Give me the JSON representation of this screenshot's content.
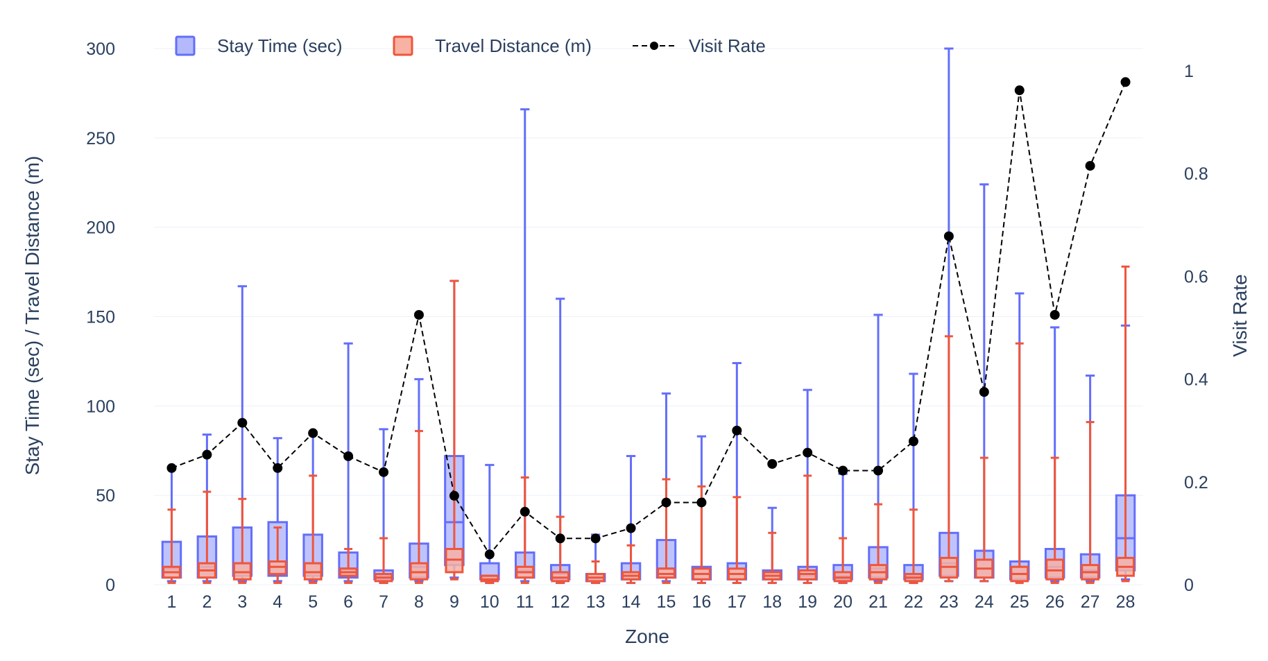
{
  "chart_data": {
    "type": "box",
    "xlabel": "Zone",
    "ylabel": "Stay Time (sec) / Travel Distance (m)",
    "y2label": "Visit Rate",
    "ylim": [
      0,
      300
    ],
    "y2lim": [
      0,
      1.0
    ],
    "yticks": [
      "0",
      "50",
      "100",
      "150",
      "200",
      "250",
      "300"
    ],
    "y2ticks": [
      "0",
      "0.2",
      "0.4",
      "0.6",
      "0.8",
      "1"
    ],
    "categories": [
      "1",
      "2",
      "3",
      "4",
      "5",
      "6",
      "7",
      "8",
      "9",
      "10",
      "11",
      "12",
      "13",
      "14",
      "15",
      "16",
      "17",
      "18",
      "19",
      "20",
      "21",
      "22",
      "23",
      "24",
      "25",
      "26",
      "27",
      "28"
    ],
    "grid": true,
    "legend_position": "top-left",
    "legend": [
      "Stay Time (sec)",
      "Travel Distance (m)",
      "Visit Rate"
    ],
    "series": [
      {
        "name": "Stay Time (sec)",
        "kind": "box",
        "color": "#636efa",
        "fill": "#b4b9fc",
        "boxes": [
          {
            "min": 2,
            "q1": 4,
            "median": 9,
            "q3": 24,
            "max": 66
          },
          {
            "min": 2,
            "q1": 4,
            "median": 10,
            "q3": 27,
            "max": 84
          },
          {
            "min": 2,
            "q1": 5,
            "median": 12,
            "q3": 32,
            "max": 167
          },
          {
            "min": 2,
            "q1": 5,
            "median": 13,
            "q3": 35,
            "max": 82
          },
          {
            "min": 2,
            "q1": 5,
            "median": 12,
            "q3": 28,
            "max": 84
          },
          {
            "min": 2,
            "q1": 4,
            "median": 9,
            "q3": 18,
            "max": 135
          },
          {
            "min": 1,
            "q1": 3,
            "median": 5,
            "q3": 8,
            "max": 87
          },
          {
            "min": 2,
            "q1": 4,
            "median": 10,
            "q3": 23,
            "max": 115
          },
          {
            "min": 4,
            "q1": 11,
            "median": 35,
            "q3": 72,
            "max": 170
          },
          {
            "min": 1,
            "q1": 3,
            "median": 5,
            "q3": 12,
            "max": 67
          },
          {
            "min": 2,
            "q1": 4,
            "median": 8,
            "q3": 18,
            "max": 266
          },
          {
            "min": 1,
            "q1": 3,
            "median": 6,
            "q3": 11,
            "max": 160
          },
          {
            "min": 1,
            "q1": 2,
            "median": 4,
            "q3": 6,
            "max": 28
          },
          {
            "min": 1,
            "q1": 3,
            "median": 5,
            "q3": 12,
            "max": 72
          },
          {
            "min": 2,
            "q1": 4,
            "median": 9,
            "q3": 25,
            "max": 107
          },
          {
            "min": 1,
            "q1": 3,
            "median": 6,
            "q3": 10,
            "max": 83
          },
          {
            "min": 1,
            "q1": 3,
            "median": 6,
            "q3": 12,
            "max": 124
          },
          {
            "min": 1,
            "q1": 3,
            "median": 5,
            "q3": 8,
            "max": 43
          },
          {
            "min": 1,
            "q1": 3,
            "median": 5,
            "q3": 10,
            "max": 109
          },
          {
            "min": 1,
            "q1": 3,
            "median": 5,
            "q3": 11,
            "max": 62
          },
          {
            "min": 2,
            "q1": 4,
            "median": 9,
            "q3": 21,
            "max": 151
          },
          {
            "min": 1,
            "q1": 3,
            "median": 5,
            "q3": 11,
            "max": 118
          },
          {
            "min": 2,
            "q1": 5,
            "median": 12,
            "q3": 29,
            "max": 300
          },
          {
            "min": 2,
            "q1": 4,
            "median": 9,
            "q3": 19,
            "max": 224
          },
          {
            "min": 2,
            "q1": 3,
            "median": 6,
            "q3": 13,
            "max": 163
          },
          {
            "min": 2,
            "q1": 4,
            "median": 10,
            "q3": 20,
            "max": 144
          },
          {
            "min": 2,
            "q1": 4,
            "median": 8,
            "q3": 17,
            "max": 117
          },
          {
            "min": 3,
            "q1": 8,
            "median": 26,
            "q3": 50,
            "max": 145
          }
        ]
      },
      {
        "name": "Travel Distance (m)",
        "kind": "box",
        "color": "#ef553b",
        "fill": "#f7b2a3",
        "boxes": [
          {
            "min": 1,
            "q1": 4,
            "median": 7,
            "q3": 10,
            "max": 42
          },
          {
            "min": 1,
            "q1": 4,
            "median": 8,
            "q3": 12,
            "max": 52
          },
          {
            "min": 1,
            "q1": 3,
            "median": 7,
            "q3": 12,
            "max": 48
          },
          {
            "min": 1,
            "q1": 6,
            "median": 10,
            "q3": 13,
            "max": 32
          },
          {
            "min": 1,
            "q1": 3,
            "median": 7,
            "q3": 12,
            "max": 61
          },
          {
            "min": 1,
            "q1": 5,
            "median": 7,
            "q3": 9,
            "max": 20
          },
          {
            "min": 1,
            "q1": 2,
            "median": 4,
            "q3": 6,
            "max": 26
          },
          {
            "min": 1,
            "q1": 3,
            "median": 7,
            "q3": 12,
            "max": 86
          },
          {
            "min": 3,
            "q1": 7,
            "median": 14,
            "q3": 20,
            "max": 170
          },
          {
            "min": 1,
            "q1": 2,
            "median": 3,
            "q3": 5,
            "max": 5
          },
          {
            "min": 1,
            "q1": 4,
            "median": 7,
            "q3": 10,
            "max": 60
          },
          {
            "min": 1,
            "q1": 2,
            "median": 4,
            "q3": 7,
            "max": 38
          },
          {
            "min": 1,
            "q1": 2,
            "median": 4,
            "q3": 6,
            "max": 13
          },
          {
            "min": 1,
            "q1": 3,
            "median": 5,
            "q3": 7,
            "max": 22
          },
          {
            "min": 1,
            "q1": 4,
            "median": 6,
            "q3": 9,
            "max": 59
          },
          {
            "min": 1,
            "q1": 3,
            "median": 6,
            "q3": 9,
            "max": 55
          },
          {
            "min": 1,
            "q1": 3,
            "median": 6,
            "q3": 9,
            "max": 49
          },
          {
            "min": 1,
            "q1": 3,
            "median": 5,
            "q3": 7,
            "max": 29
          },
          {
            "min": 1,
            "q1": 3,
            "median": 6,
            "q3": 8,
            "max": 61
          },
          {
            "min": 1,
            "q1": 2,
            "median": 4,
            "q3": 7,
            "max": 26
          },
          {
            "min": 1,
            "q1": 3,
            "median": 7,
            "q3": 11,
            "max": 45
          },
          {
            "min": 1,
            "q1": 2,
            "median": 4,
            "q3": 6,
            "max": 42
          },
          {
            "min": 2,
            "q1": 4,
            "median": 10,
            "q3": 15,
            "max": 139
          },
          {
            "min": 2,
            "q1": 4,
            "median": 9,
            "q3": 14,
            "max": 71
          },
          {
            "min": 1,
            "q1": 2,
            "median": 6,
            "q3": 10,
            "max": 135
          },
          {
            "min": 1,
            "q1": 3,
            "median": 8,
            "q3": 14,
            "max": 71
          },
          {
            "min": 1,
            "q1": 3,
            "median": 7,
            "q3": 11,
            "max": 91
          },
          {
            "min": 2,
            "q1": 5,
            "median": 10,
            "q3": 15,
            "max": 178
          }
        ]
      },
      {
        "name": "Visit Rate",
        "kind": "line",
        "axis": "y2",
        "color": "#000000",
        "dash": "dash",
        "values": [
          0.227,
          0.253,
          0.315,
          0.227,
          0.295,
          0.25,
          0.219,
          0.525,
          0.173,
          0.059,
          0.142,
          0.09,
          0.09,
          0.11,
          0.16,
          0.16,
          0.3,
          0.235,
          0.257,
          0.222,
          0.222,
          0.279,
          0.678,
          0.375,
          0.962,
          0.525,
          0.815,
          0.978
        ]
      }
    ]
  }
}
